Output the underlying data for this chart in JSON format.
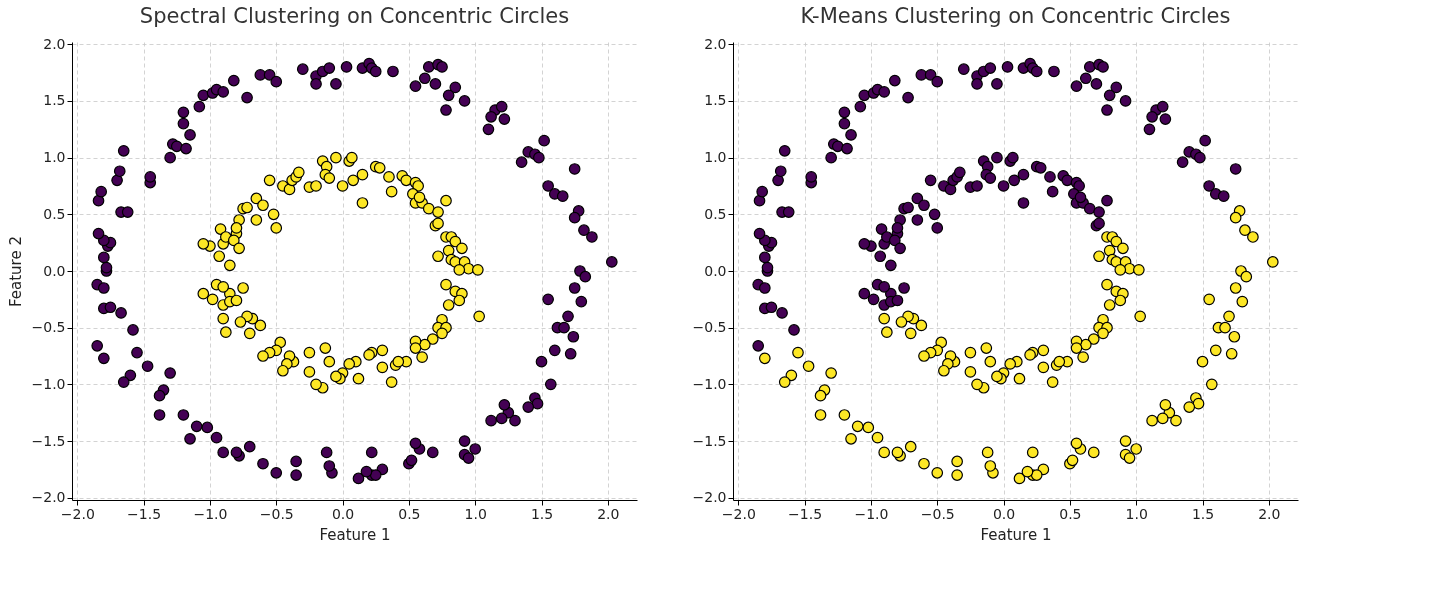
{
  "chart_data": [
    {
      "type": "scatter",
      "title": "Spectral Clustering on Concentric Circles",
      "xlabel": "Feature 1",
      "ylabel": "Feature 2",
      "marker": "circle",
      "grid": true,
      "xlim": [
        -2.04,
        2.22
      ],
      "ylim": [
        -2.02,
        2.02
      ],
      "xticks": [
        {
          "value": -2,
          "label": "−2.0"
        },
        {
          "value": -1.5,
          "label": "−1.5"
        },
        {
          "value": -1,
          "label": "−1.0"
        },
        {
          "value": -0.5,
          "label": "−0.5"
        },
        {
          "value": 0,
          "label": "0.0"
        },
        {
          "value": 0.5,
          "label": "0.5"
        },
        {
          "value": 1,
          "label": "1.0"
        },
        {
          "value": 1.5,
          "label": "1.5"
        },
        {
          "value": 2,
          "label": "2.0"
        }
      ],
      "yticks": [
        {
          "value": -2,
          "label": "−2.0"
        },
        {
          "value": -1.5,
          "label": "−1.5"
        },
        {
          "value": -1,
          "label": "−1.0"
        },
        {
          "value": -0.5,
          "label": "−0.5"
        },
        {
          "value": 0,
          "label": "0.0"
        },
        {
          "value": 0.5,
          "label": "0.5"
        },
        {
          "value": 1,
          "label": "1.0"
        },
        {
          "value": 1.5,
          "label": "1.5"
        },
        {
          "value": 2,
          "label": "2.0"
        }
      ],
      "series": [
        {
          "color": "#440154",
          "x": [
            -0.3,
            -0.2,
            -0.15,
            -0.1,
            -0.2,
            -0.05,
            0.03,
            0.15,
            0.2,
            0.22,
            0.25,
            0.38,
            0.65,
            0.72,
            0.75,
            0.62,
            0.55,
            0.7,
            0.85,
            0.8,
            0.92,
            0.78,
            1.15,
            1.2,
            1.12,
            1.22,
            1.1,
            1.4,
            1.45,
            1.48,
            1.52,
            1.35,
            1.55,
            1.6,
            1.66,
            1.75,
            1.78,
            1.75,
            1.82,
            1.88,
            2.03,
            1.79,
            1.83,
            1.75,
            1.7,
            1.8,
            1.62,
            1.67,
            1.55,
            1.74,
            1.72,
            1.6,
            1.5,
            1.57,
            1.45,
            1.47,
            1.4,
            1.3,
            1.25,
            1.2,
            1.12,
            1.22,
            1.0,
            0.92,
            0.95,
            0.92,
            0.68,
            0.58,
            0.55,
            0.5,
            0.52,
            0.3,
            0.22,
            0.25,
            0.12,
            0.18,
            0.22,
            -0.08,
            -0.1,
            -0.12,
            -0.35,
            -0.35,
            -0.5,
            -0.6,
            -0.7,
            -0.78,
            -0.8,
            -0.9,
            -0.95,
            -1.02,
            -1.1,
            -1.15,
            -1.2,
            -1.3,
            -1.35,
            -1.38,
            -1.38,
            -1.47,
            -1.55,
            -1.6,
            -1.65,
            -1.8,
            -1.58,
            -1.85,
            -1.8,
            -1.75,
            -1.67,
            -1.85,
            -1.8,
            -1.78,
            -1.78,
            -1.8,
            -1.77,
            -1.75,
            -1.8,
            -1.84,
            -1.67,
            -1.62,
            -1.84,
            -1.82,
            -1.7,
            -1.68,
            -1.65,
            -1.45,
            -1.45,
            -1.3,
            -1.28,
            -1.25,
            -1.18,
            -1.2,
            -1.2,
            -1.15,
            -1.08,
            -1.05,
            -0.98,
            -0.95,
            -0.9,
            -0.82,
            -0.72,
            -0.62,
            -0.55,
            -0.5
          ],
          "values": [
            1.78,
            1.72,
            1.76,
            1.79,
            1.65,
            1.65,
            1.8,
            1.79,
            1.83,
            1.79,
            1.76,
            1.76,
            1.8,
            1.82,
            1.8,
            1.7,
            1.63,
            1.65,
            1.62,
            1.55,
            1.5,
            1.42,
            1.42,
            1.45,
            1.36,
            1.34,
            1.25,
            1.05,
            1.03,
            1.0,
            1.15,
            0.96,
            0.75,
            0.68,
            0.66,
            0.9,
            0.53,
            0.47,
            0.36,
            0.3,
            0.08,
            0.0,
            -0.05,
            -0.15,
            -0.4,
            -0.27,
            -0.5,
            -0.5,
            -0.25,
            -0.58,
            -0.73,
            -0.7,
            -0.8,
            -1.0,
            -1.12,
            -1.17,
            -1.2,
            -1.32,
            -1.25,
            -1.3,
            -1.32,
            -1.18,
            -1.57,
            -1.62,
            -1.65,
            -1.5,
            -1.6,
            -1.57,
            -1.52,
            -1.7,
            -1.67,
            -1.75,
            -1.8,
            -1.8,
            -1.83,
            -1.77,
            -1.6,
            -1.78,
            -1.72,
            -1.6,
            -1.8,
            -1.68,
            -1.78,
            -1.7,
            -1.55,
            -1.63,
            -1.6,
            -1.6,
            -1.47,
            -1.38,
            -1.37,
            -1.48,
            -1.27,
            -0.9,
            -1.05,
            -1.1,
            -1.27,
            -0.84,
            -0.72,
            -0.92,
            -0.98,
            -0.77,
            -0.52,
            -0.66,
            -0.33,
            -0.32,
            -0.37,
            -0.12,
            -0.15,
            0.0,
            0.03,
            0.12,
            0.22,
            0.25,
            0.27,
            0.33,
            0.52,
            0.52,
            0.62,
            0.7,
            0.8,
            0.88,
            1.06,
            0.78,
            0.83,
            1.0,
            1.12,
            1.1,
            1.08,
            1.3,
            1.4,
            1.2,
            1.45,
            1.55,
            1.57,
            1.6,
            1.58,
            1.68,
            1.53,
            1.73,
            1.73,
            1.67
          ]
        },
        {
          "color": "#fde725",
          "x": [
            -0.55,
            -0.45,
            -0.4,
            -0.38,
            -0.35,
            -0.33,
            -0.25,
            -0.2,
            -0.15,
            -0.12,
            -0.13,
            -0.1,
            -0.05,
            0.0,
            0.05,
            0.07,
            0.08,
            0.15,
            0.15,
            0.25,
            0.28,
            0.35,
            0.37,
            0.45,
            0.48,
            0.55,
            0.57,
            0.53,
            0.55,
            0.6,
            0.58,
            0.65,
            0.72,
            0.78,
            0.7,
            0.72,
            0.78,
            0.82,
            0.85,
            0.8,
            0.72,
            0.82,
            0.85,
            0.9,
            0.92,
            0.95,
            0.88,
            1.02,
            0.78,
            0.85,
            0.9,
            0.88,
            0.8,
            1.03,
            0.75,
            0.72,
            0.78,
            0.75,
            0.68,
            0.62,
            0.55,
            0.55,
            0.6,
            0.48,
            0.4,
            0.37,
            0.42,
            0.3,
            0.22,
            0.2,
            0.3,
            0.1,
            0.05,
            0.0,
            -0.02,
            -0.05,
            0.12,
            -0.1,
            -0.13,
            -0.25,
            -0.25,
            -0.15,
            -0.2,
            -0.37,
            -0.4,
            -0.42,
            -0.45,
            -0.47,
            -0.5,
            -0.55,
            -0.6,
            -0.62,
            -0.68,
            -0.7,
            -0.72,
            -0.77,
            -0.88,
            -0.9,
            -0.9,
            -0.85,
            -0.95,
            -0.98,
            -0.9,
            -1.05,
            -0.85,
            -0.8,
            -0.75,
            -0.85,
            -0.93,
            -1.0,
            -1.05,
            -0.9,
            -0.92,
            -0.88,
            -0.8,
            -0.82,
            -0.78,
            -0.78,
            -0.8,
            -0.75,
            -0.72,
            -0.65,
            -0.6,
            -0.65,
            -0.5,
            -0.52
          ],
          "values": [
            0.8,
            0.75,
            0.72,
            0.8,
            0.83,
            0.87,
            0.74,
            0.75,
            0.97,
            0.92,
            0.85,
            0.82,
            1.0,
            0.75,
            0.97,
            1.0,
            0.8,
            0.85,
            0.6,
            0.92,
            0.91,
            0.83,
            0.7,
            0.84,
            0.8,
            0.78,
            0.75,
            0.68,
            0.6,
            0.6,
            0.65,
            0.55,
            0.52,
            0.62,
            0.4,
            0.42,
            0.3,
            0.3,
            0.26,
            0.18,
            0.13,
            0.1,
            0.08,
            0.2,
            0.08,
            0.02,
            0.01,
            0.01,
            -0.12,
            -0.18,
            -0.2,
            -0.26,
            -0.3,
            -0.4,
            -0.43,
            -0.5,
            -0.5,
            -0.55,
            -0.6,
            -0.65,
            -0.62,
            -0.68,
            -0.76,
            -0.8,
            -0.83,
            -0.98,
            -0.8,
            -0.85,
            -0.72,
            -0.74,
            -0.7,
            -0.8,
            -0.82,
            -0.9,
            -0.95,
            -0.93,
            -0.95,
            -0.8,
            -0.68,
            -0.89,
            -0.72,
            -1.03,
            -1.0,
            -0.8,
            -0.75,
            -0.82,
            -0.88,
            -0.63,
            -0.7,
            -0.72,
            -0.75,
            -0.48,
            -0.42,
            -0.55,
            -0.4,
            -0.45,
            -0.54,
            -0.42,
            -0.3,
            -0.2,
            -0.12,
            -0.25,
            -0.14,
            -0.2,
            -0.27,
            -0.26,
            -0.15,
            0.05,
            0.13,
            0.22,
            0.24,
            0.24,
            0.37,
            0.3,
            0.33,
            0.27,
            0.2,
            0.45,
            0.38,
            0.55,
            0.56,
            0.64,
            0.58,
            0.45,
            0.38,
            0.5
          ]
        }
      ]
    },
    {
      "type": "scatter",
      "title": "K-Means Clustering on Concentric Circles",
      "xlabel": "Feature 1",
      "marker": "circle",
      "grid": true,
      "xlim": [
        -2.04,
        2.22
      ],
      "ylim": [
        -2.02,
        2.02
      ],
      "xticks": [
        {
          "value": -2,
          "label": "−2.0"
        },
        {
          "value": -1.5,
          "label": "−1.5"
        },
        {
          "value": -1,
          "label": "−1.0"
        },
        {
          "value": -0.5,
          "label": "−0.5"
        },
        {
          "value": 0,
          "label": "0.0"
        },
        {
          "value": 0.5,
          "label": "0.5"
        },
        {
          "value": 1,
          "label": "1.0"
        },
        {
          "value": 1.5,
          "label": "1.5"
        },
        {
          "value": 2,
          "label": "2.0"
        }
      ],
      "yticks": [
        {
          "value": -2,
          "label": "−2.0"
        },
        {
          "value": -1.5,
          "label": "−1.5"
        },
        {
          "value": -1,
          "label": "−1.0"
        },
        {
          "value": -0.5,
          "label": "−0.5"
        },
        {
          "value": 0,
          "label": "0.0"
        },
        {
          "value": 0.5,
          "label": "0.5"
        },
        {
          "value": 1,
          "label": "1.0"
        },
        {
          "value": 1.5,
          "label": "1.5"
        },
        {
          "value": 2,
          "label": "2.0"
        }
      ],
      "series": [
        {
          "color": "#440154",
          "x": [
            -0.3,
            -0.2,
            -0.15,
            -0.1,
            -0.2,
            -0.05,
            0.03,
            0.15,
            0.2,
            0.22,
            0.25,
            0.38,
            0.65,
            0.72,
            0.75,
            0.62,
            0.55,
            0.7,
            0.85,
            0.8,
            0.92,
            0.78,
            1.15,
            1.2,
            1.12,
            1.22,
            1.1,
            1.4,
            1.45,
            1.48,
            1.52,
            1.35,
            1.55,
            1.6,
            1.66,
            1.75,
            -1.58,
            -1.85,
            -1.8,
            -1.75,
            -1.67,
            -1.85,
            -1.8,
            -1.78,
            -1.78,
            -1.8,
            -1.77,
            -1.75,
            -1.8,
            -1.84,
            -1.67,
            -1.62,
            -1.84,
            -1.82,
            -1.7,
            -1.68,
            -1.65,
            -1.45,
            -1.45,
            -1.3,
            -1.28,
            -1.25,
            -1.18,
            -1.2,
            -1.2,
            -1.15,
            -1.08,
            -1.05,
            -0.98,
            -0.95,
            -0.9,
            -0.82,
            -0.72,
            -0.62,
            -0.55,
            -0.5,
            -0.55,
            -0.45,
            -0.4,
            -0.38,
            -0.35,
            -0.33,
            -0.25,
            -0.2,
            -0.15,
            -0.12,
            -0.13,
            -0.1,
            -0.05,
            0.0,
            0.05,
            0.07,
            0.08,
            0.15,
            0.15,
            0.25,
            0.28,
            0.35,
            0.37,
            0.45,
            0.48,
            0.55,
            0.57,
            0.53,
            0.55,
            0.6,
            0.58,
            0.65,
            0.72,
            0.78,
            0.7,
            0.72,
            -0.9,
            -0.85,
            -0.95,
            -0.98,
            -0.9,
            -1.05,
            -0.85,
            -0.8,
            -0.75,
            -0.85,
            -0.93,
            -1.0,
            -1.05,
            -0.9,
            -0.92,
            -0.88,
            -0.8,
            -0.82,
            -0.78,
            -0.78,
            -0.8,
            -0.75,
            -0.72,
            -0.65,
            -0.6,
            -0.65,
            -0.5,
            -0.52
          ],
          "values": [
            1.78,
            1.72,
            1.76,
            1.79,
            1.65,
            1.65,
            1.8,
            1.79,
            1.83,
            1.79,
            1.76,
            1.76,
            1.8,
            1.82,
            1.8,
            1.7,
            1.63,
            1.65,
            1.62,
            1.55,
            1.5,
            1.42,
            1.42,
            1.45,
            1.36,
            1.34,
            1.25,
            1.05,
            1.03,
            1.0,
            1.15,
            0.96,
            0.75,
            0.68,
            0.66,
            0.9,
            -0.52,
            -0.66,
            -0.33,
            -0.32,
            -0.37,
            -0.12,
            -0.15,
            0.0,
            0.03,
            0.12,
            0.22,
            0.25,
            0.27,
            0.33,
            0.52,
            0.52,
            0.62,
            0.7,
            0.8,
            0.88,
            1.06,
            0.78,
            0.83,
            1.0,
            1.12,
            1.1,
            1.08,
            1.3,
            1.4,
            1.2,
            1.45,
            1.55,
            1.57,
            1.6,
            1.58,
            1.68,
            1.53,
            1.73,
            1.73,
            1.67,
            0.8,
            0.75,
            0.72,
            0.8,
            0.83,
            0.87,
            0.74,
            0.75,
            0.97,
            0.92,
            0.85,
            0.82,
            1.0,
            0.75,
            0.97,
            1.0,
            0.8,
            0.85,
            0.6,
            0.92,
            0.91,
            0.83,
            0.7,
            0.84,
            0.8,
            0.78,
            0.75,
            0.68,
            0.6,
            0.6,
            0.65,
            0.55,
            0.52,
            0.62,
            0.4,
            0.42,
            -0.3,
            -0.2,
            -0.12,
            -0.25,
            -0.14,
            -0.2,
            -0.27,
            -0.26,
            -0.15,
            0.05,
            0.13,
            0.22,
            0.24,
            0.24,
            0.37,
            0.3,
            0.33,
            0.27,
            0.2,
            0.45,
            0.38,
            0.55,
            0.56,
            0.64,
            0.58,
            0.45,
            0.38,
            0.5
          ]
        },
        {
          "color": "#fde725",
          "x": [
            1.78,
            1.75,
            1.82,
            1.88,
            2.03,
            1.79,
            1.83,
            1.75,
            1.7,
            1.8,
            1.62,
            1.67,
            1.55,
            1.74,
            1.72,
            1.6,
            1.5,
            1.57,
            1.45,
            1.47,
            1.4,
            1.3,
            1.25,
            1.2,
            1.12,
            1.22,
            1.0,
            0.92,
            0.95,
            0.92,
            0.68,
            0.58,
            0.55,
            0.5,
            0.52,
            0.3,
            0.22,
            0.25,
            0.12,
            0.18,
            0.22,
            -0.08,
            -0.1,
            -0.12,
            -0.35,
            -0.35,
            -0.5,
            -0.6,
            -0.7,
            -0.78,
            -0.8,
            -0.9,
            -0.95,
            -1.02,
            -1.1,
            -1.15,
            -1.2,
            -1.3,
            -1.35,
            -1.38,
            -1.38,
            -1.47,
            -1.55,
            -1.6,
            -1.65,
            -1.8,
            0.78,
            0.82,
            0.85,
            0.8,
            0.72,
            0.82,
            0.85,
            0.9,
            0.92,
            0.95,
            0.88,
            1.02,
            0.78,
            0.85,
            0.9,
            0.88,
            0.8,
            1.03,
            0.75,
            0.72,
            0.78,
            0.75,
            0.68,
            0.62,
            0.55,
            0.55,
            0.6,
            0.48,
            0.4,
            0.37,
            0.42,
            0.3,
            0.22,
            0.2,
            0.3,
            0.1,
            0.05,
            0.0,
            -0.02,
            -0.05,
            0.12,
            -0.1,
            -0.13,
            -0.25,
            -0.25,
            -0.15,
            -0.2,
            -0.37,
            -0.4,
            -0.42,
            -0.45,
            -0.47,
            -0.5,
            -0.55,
            -0.6,
            -0.62,
            -0.68,
            -0.7,
            -0.72,
            -0.77,
            -0.88,
            -0.9
          ],
          "values": [
            0.53,
            0.47,
            0.36,
            0.3,
            0.08,
            0.0,
            -0.05,
            -0.15,
            -0.4,
            -0.27,
            -0.5,
            -0.5,
            -0.25,
            -0.58,
            -0.73,
            -0.7,
            -0.8,
            -1.0,
            -1.12,
            -1.17,
            -1.2,
            -1.32,
            -1.25,
            -1.3,
            -1.32,
            -1.18,
            -1.57,
            -1.62,
            -1.65,
            -1.5,
            -1.6,
            -1.57,
            -1.52,
            -1.7,
            -1.67,
            -1.75,
            -1.8,
            -1.8,
            -1.83,
            -1.77,
            -1.6,
            -1.78,
            -1.72,
            -1.6,
            -1.8,
            -1.68,
            -1.78,
            -1.7,
            -1.55,
            -1.63,
            -1.6,
            -1.6,
            -1.47,
            -1.38,
            -1.37,
            -1.48,
            -1.27,
            -0.9,
            -1.05,
            -1.1,
            -1.27,
            -0.84,
            -0.72,
            -0.92,
            -0.98,
            -0.77,
            0.3,
            0.3,
            0.26,
            0.18,
            0.13,
            0.1,
            0.08,
            0.2,
            0.08,
            0.02,
            0.01,
            0.01,
            -0.12,
            -0.18,
            -0.2,
            -0.26,
            -0.3,
            -0.4,
            -0.43,
            -0.5,
            -0.5,
            -0.55,
            -0.6,
            -0.65,
            -0.62,
            -0.68,
            -0.76,
            -0.8,
            -0.83,
            -0.98,
            -0.8,
            -0.85,
            -0.72,
            -0.74,
            -0.7,
            -0.8,
            -0.82,
            -0.9,
            -0.95,
            -0.93,
            -0.95,
            -0.8,
            -0.68,
            -0.89,
            -0.72,
            -1.03,
            -1.0,
            -0.8,
            -0.75,
            -0.82,
            -0.88,
            -0.63,
            -0.7,
            -0.72,
            -0.75,
            -0.48,
            -0.42,
            -0.55,
            -0.4,
            -0.45,
            -0.54,
            -0.42
          ]
        }
      ]
    }
  ]
}
